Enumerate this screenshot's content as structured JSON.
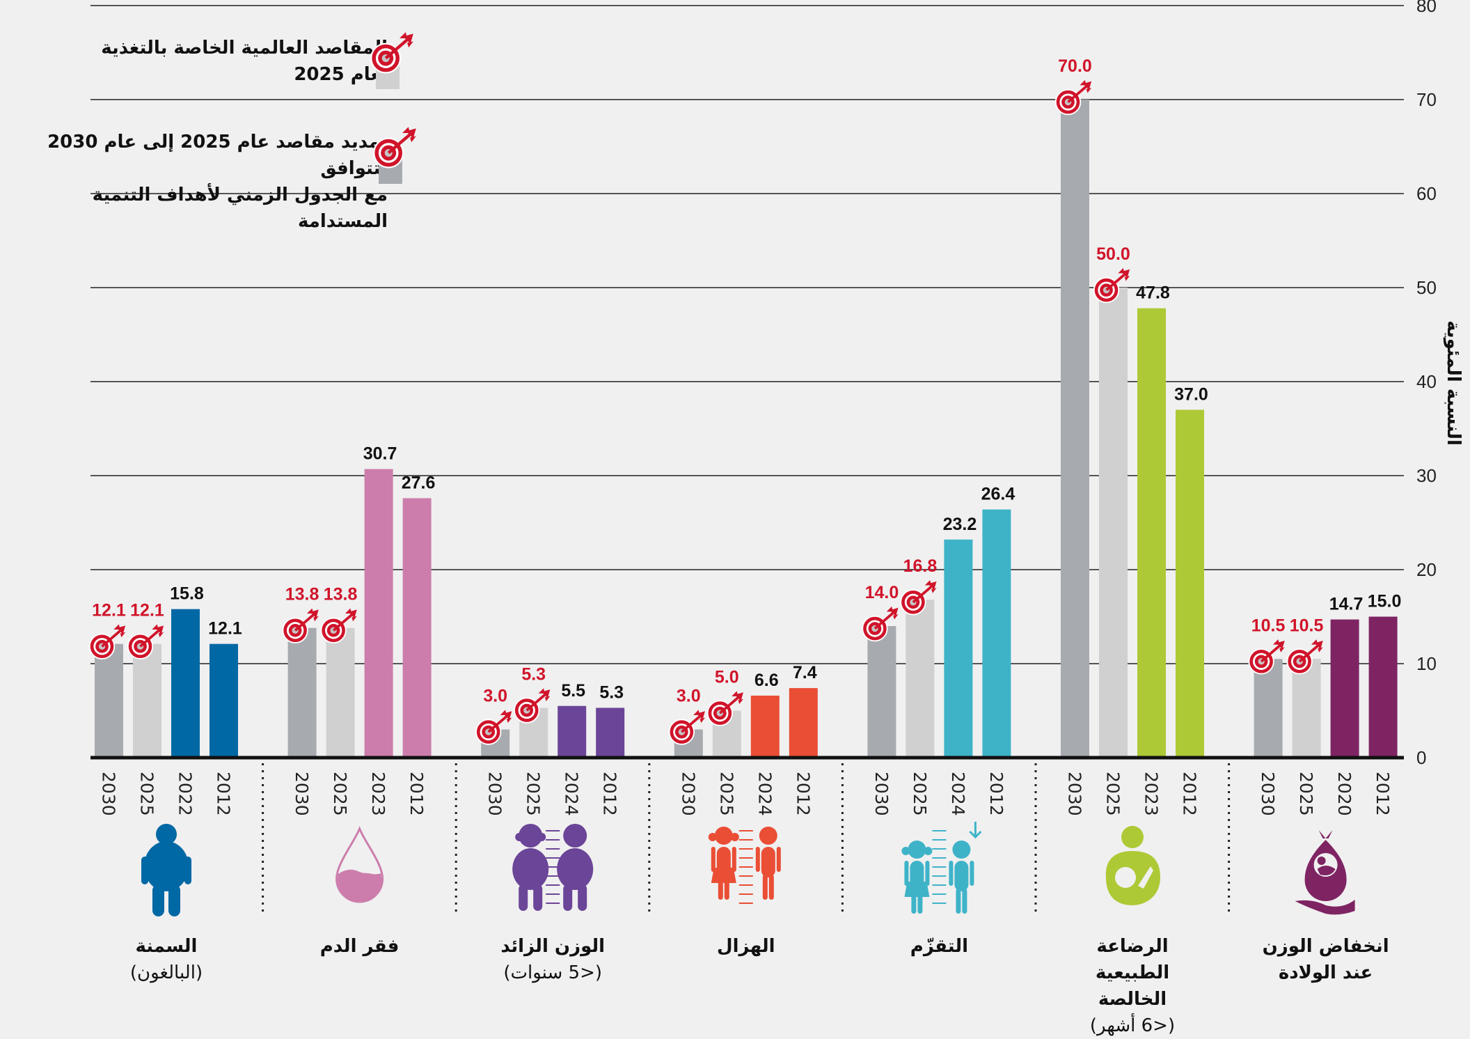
{
  "legend": {
    "items": [
      {
        "line1": "المقاصد العالمية الخاصة بالتغذية",
        "line2": "لعام 2025",
        "swatch_color": "#d0d0d0",
        "icon": "target-arrow-icon"
      },
      {
        "line1": "تمديد مقاصد عام 2025 إلى عام 2030 لتتوافق",
        "line2": "مع الجدول الزمني لأهداف التنمية المستدامة",
        "swatch_color": "#a7abaf",
        "icon": "target-arrow-icon"
      }
    ]
  },
  "colors": {
    "target_2030": "#a7abaf",
    "target_2025": "#d0d0d0",
    "target_label": "#d0142a",
    "value_label": "#111111",
    "grid": "#555555",
    "axis": "#111111"
  },
  "chart_data": {
    "type": "bar",
    "title": "",
    "xlabel": "",
    "ylabel": "النسبة المئوية",
    "ylim": [
      0,
      80
    ],
    "yticks": [
      0,
      10,
      20,
      30,
      40,
      50,
      60,
      70,
      80
    ],
    "grid": true,
    "groups": [
      {
        "name": "السمنة",
        "sub": "(البالغون)",
        "icon": "obese-person-icon",
        "color": "#0068a5",
        "bars": [
          {
            "year": "2030",
            "value": 12.1,
            "target": true
          },
          {
            "year": "2025",
            "value": 12.1,
            "target": true
          },
          {
            "year": "2022",
            "value": 15.8,
            "target": false
          },
          {
            "year": "2012",
            "value": 12.1,
            "target": false
          }
        ]
      },
      {
        "name": "فقر الدم",
        "sub": "",
        "icon": "blood-drop-icon",
        "color": "#cc7dac",
        "bars": [
          {
            "year": "2030",
            "value": 13.8,
            "target": true
          },
          {
            "year": "2025",
            "value": 13.8,
            "target": true
          },
          {
            "year": "2023",
            "value": 30.7,
            "target": false
          },
          {
            "year": "2012",
            "value": 27.6,
            "target": false
          }
        ]
      },
      {
        "name": "الوزن الزائد",
        "sub": "(<5 سنوات)",
        "icon": "overweight-children-icon",
        "color": "#6b4598",
        "bars": [
          {
            "year": "2030",
            "value": 3.0,
            "target": true
          },
          {
            "year": "2025",
            "value": 5.3,
            "target": true
          },
          {
            "year": "2024",
            "value": 5.5,
            "target": false
          },
          {
            "year": "2012",
            "value": 5.3,
            "target": false
          }
        ]
      },
      {
        "name": "الهزال",
        "sub": "",
        "icon": "wasted-children-icon",
        "color": "#ea4e35",
        "bars": [
          {
            "year": "2030",
            "value": 3.0,
            "target": true
          },
          {
            "year": "2025",
            "value": 5.0,
            "target": true
          },
          {
            "year": "2024",
            "value": 6.6,
            "target": false
          },
          {
            "year": "2012",
            "value": 7.4,
            "target": false
          }
        ]
      },
      {
        "name": "التقزّم",
        "sub": "",
        "icon": "stunted-children-icon",
        "color": "#3eb3c8",
        "bars": [
          {
            "year": "2030",
            "value": 14.0,
            "target": true
          },
          {
            "year": "2025",
            "value": 16.8,
            "target": true
          },
          {
            "year": "2024",
            "value": 23.2,
            "target": false
          },
          {
            "year": "2012",
            "value": 26.4,
            "target": false
          }
        ]
      },
      {
        "name": "الرضاعة الطبيعية الخالصة",
        "sub": "(<6 أشهر)",
        "icon": "breastfeeding-icon",
        "color": "#adc935",
        "bars": [
          {
            "year": "2030",
            "value": 70.0,
            "target": true
          },
          {
            "year": "2025",
            "value": 50.0,
            "target": true
          },
          {
            "year": "2023",
            "value": 47.8,
            "target": false
          },
          {
            "year": "2012",
            "value": 37.0,
            "target": false
          }
        ]
      },
      {
        "name": "انخفاض الوزن عند الولادة",
        "sub": "",
        "icon": "low-birthweight-icon",
        "color": "#7e2463",
        "bars": [
          {
            "year": "2030",
            "value": 10.5,
            "target": true
          },
          {
            "year": "2025",
            "value": 10.5,
            "target": true
          },
          {
            "year": "2020",
            "value": 14.7,
            "target": false
          },
          {
            "year": "2012",
            "value": 15.0,
            "target": false
          }
        ]
      }
    ]
  }
}
